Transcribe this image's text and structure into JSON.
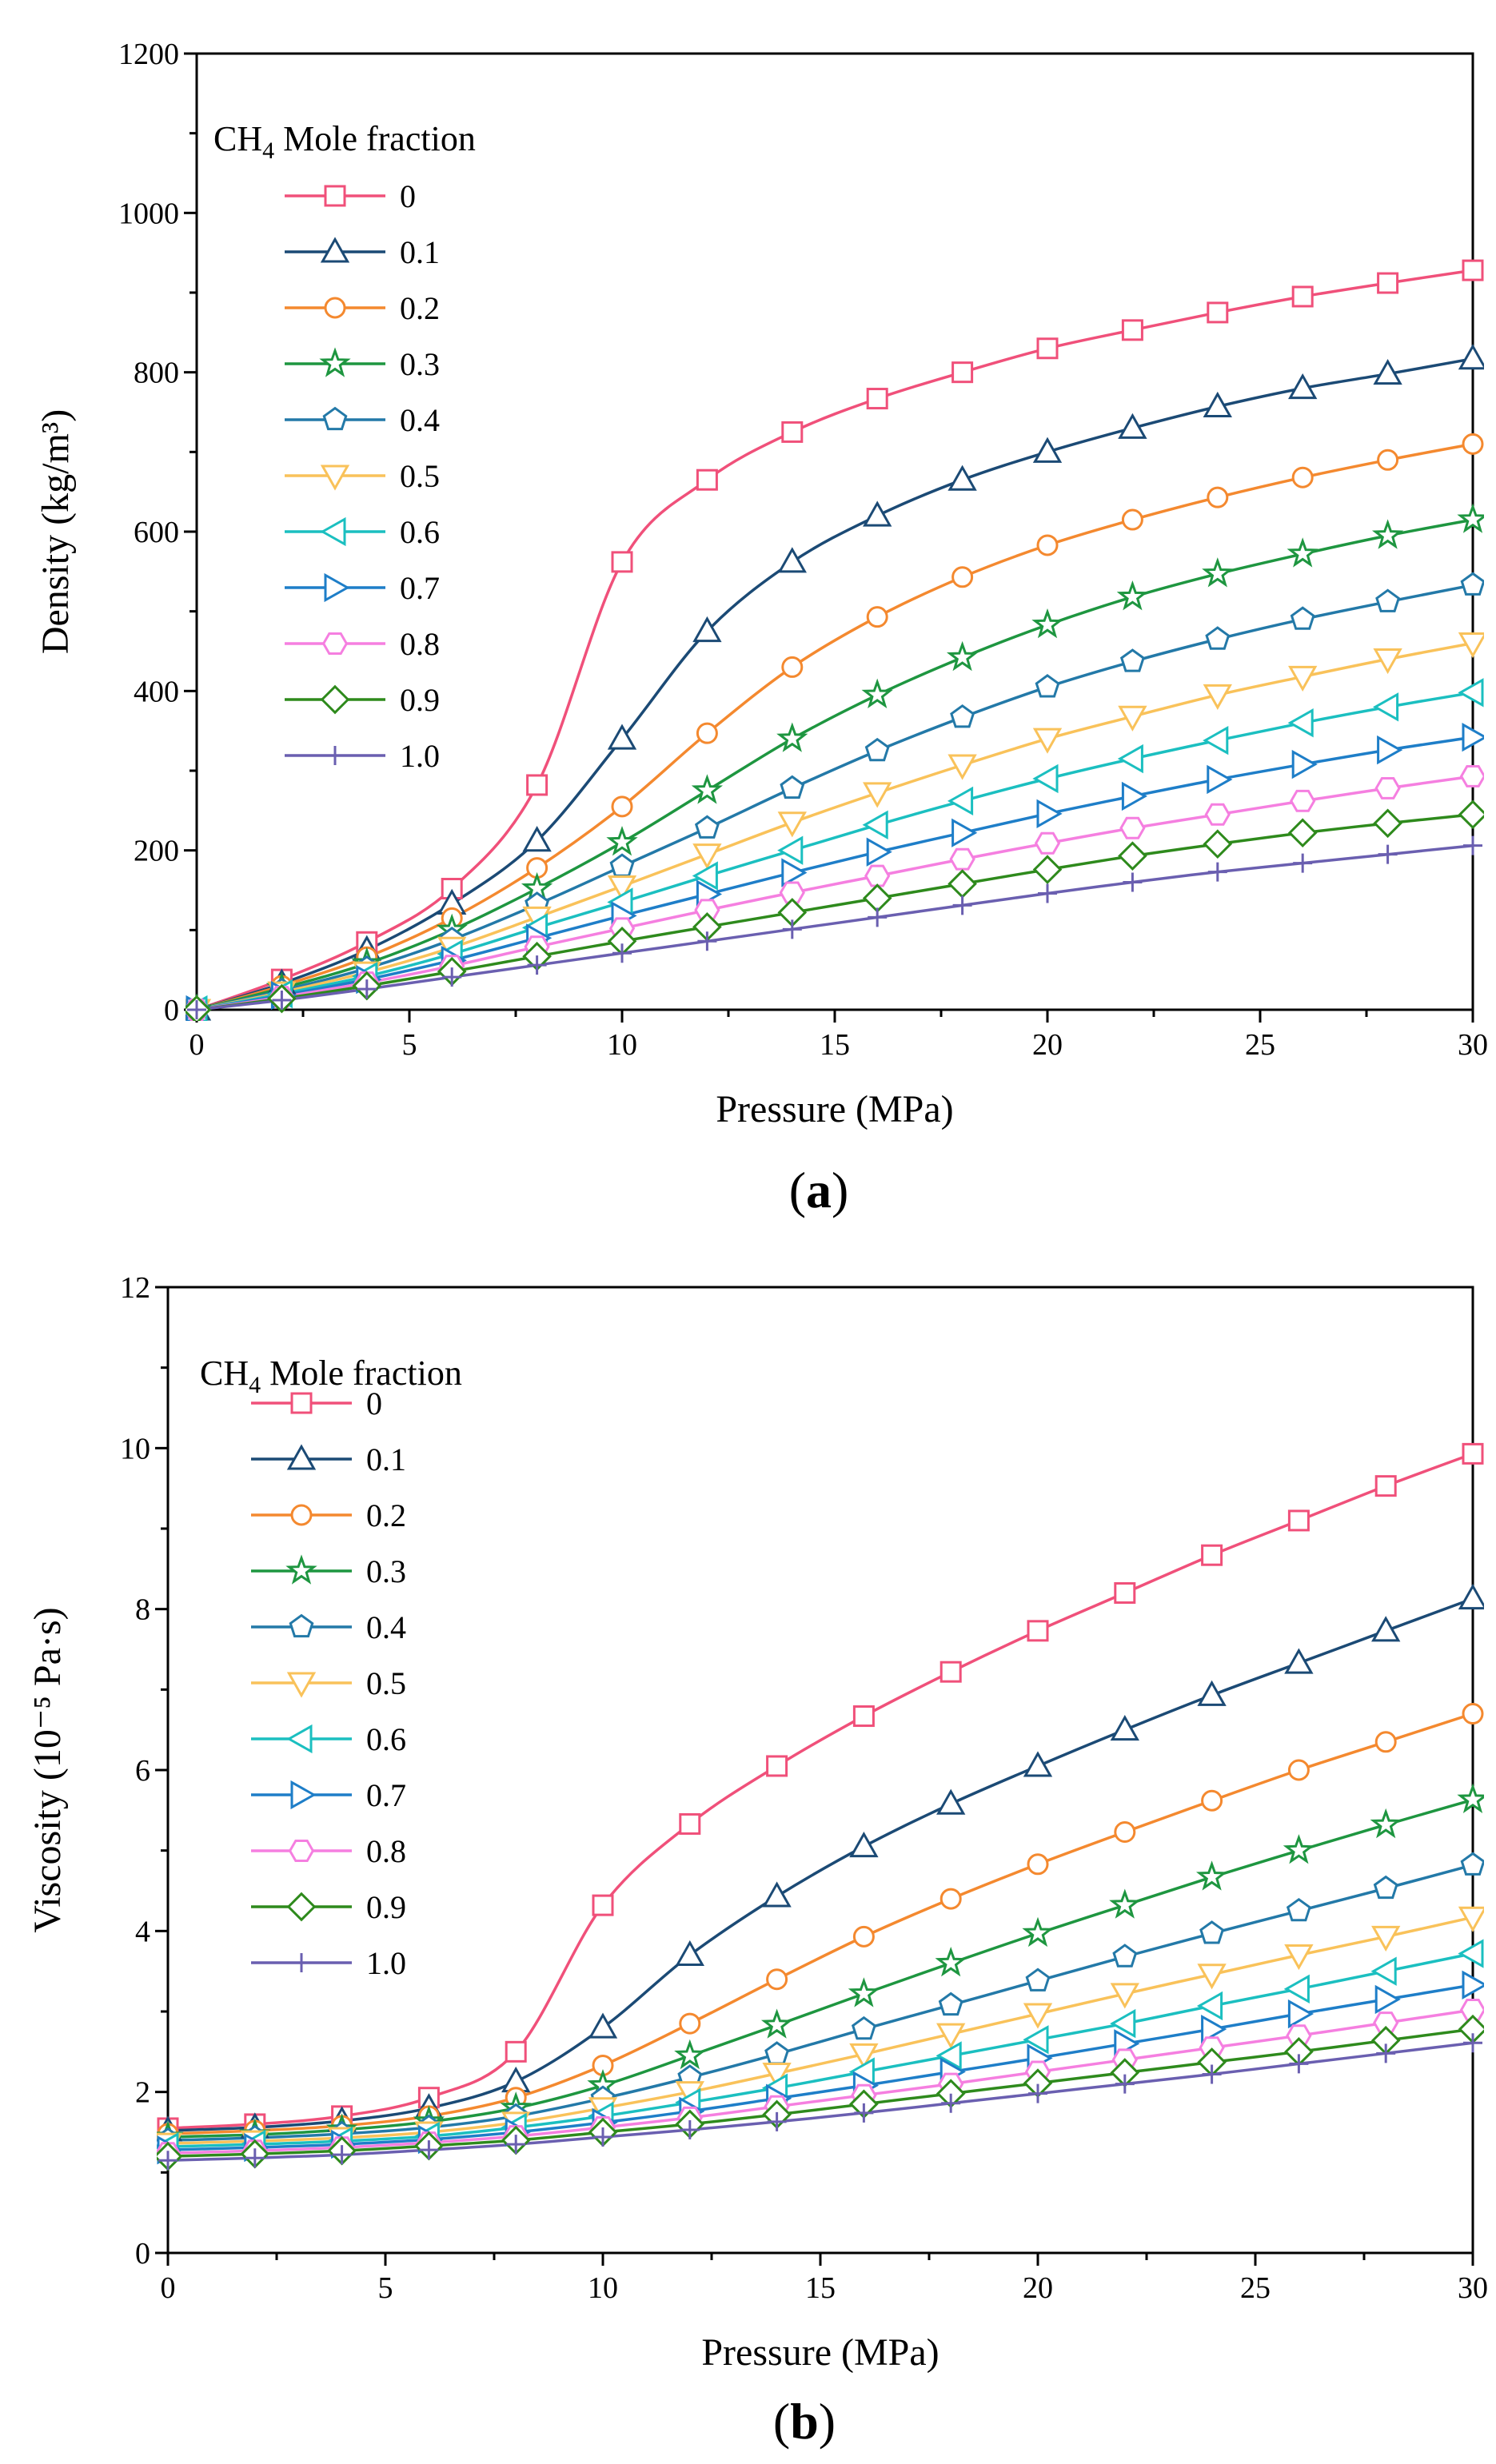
{
  "figure": {
    "legend_title": "Mole fraction",
    "legend_title_species": "CH",
    "legend_title_subscript": "4"
  },
  "chart_data": [
    {
      "type": "line",
      "caption": "(a)",
      "caption_letter": "a",
      "xlabel": "Pressure (MPa)",
      "ylabel": "Density (kg/m³)",
      "xlim": [
        0,
        30
      ],
      "ylim": [
        0,
        1200
      ],
      "x_ticks": [
        0,
        5,
        10,
        15,
        20,
        25,
        30
      ],
      "y_ticks": [
        0,
        200,
        400,
        600,
        800,
        1000,
        1200
      ],
      "x": [
        0,
        2,
        4,
        6,
        8,
        10,
        12,
        14,
        16,
        18,
        20,
        22,
        24,
        26,
        28,
        30
      ],
      "legend_position": "top-left",
      "series": [
        {
          "name": "0",
          "color": "#f0507a",
          "marker": "square",
          "values": [
            0,
            38,
            85,
            152,
            282,
            562,
            665,
            725,
            767,
            800,
            830,
            853,
            875,
            895,
            912,
            928
          ]
        },
        {
          "name": "0.1",
          "color": "#1b4a75",
          "marker": "triangle-up",
          "values": [
            0,
            33,
            75,
            133,
            212,
            340,
            475,
            562,
            620,
            665,
            700,
            730,
            757,
            780,
            798,
            817
          ]
        },
        {
          "name": "0.2",
          "color": "#f4892f",
          "marker": "circle",
          "values": [
            0,
            30,
            66,
            115,
            178,
            255,
            347,
            430,
            493,
            543,
            583,
            615,
            643,
            668,
            690,
            710
          ]
        },
        {
          "name": "0.3",
          "color": "#1e9640",
          "marker": "star",
          "values": [
            0,
            27,
            58,
            100,
            152,
            210,
            275,
            340,
            395,
            442,
            483,
            518,
            547,
            572,
            595,
            615
          ]
        },
        {
          "name": "0.4",
          "color": "#2379a8",
          "marker": "pentagon",
          "values": [
            0,
            24,
            52,
            88,
            132,
            180,
            228,
            278,
            325,
            367,
            405,
            437,
            465,
            490,
            512,
            533
          ]
        },
        {
          "name": "0.5",
          "color": "#f9c25a",
          "marker": "triangle-down",
          "values": [
            0,
            22,
            47,
            78,
            116,
            155,
            195,
            235,
            272,
            307,
            340,
            368,
            395,
            418,
            440,
            460
          ]
        },
        {
          "name": "0.6",
          "color": "#1bbfc0",
          "marker": "triangle-left",
          "values": [
            0,
            20,
            42,
            70,
            103,
            135,
            168,
            200,
            232,
            262,
            290,
            315,
            338,
            360,
            380,
            398
          ]
        },
        {
          "name": "0.7",
          "color": "#1e7ec8",
          "marker": "triangle-right",
          "values": [
            0,
            18,
            38,
            62,
            90,
            118,
            145,
            172,
            198,
            222,
            246,
            268,
            289,
            308,
            326,
            342
          ]
        },
        {
          "name": "0.8",
          "color": "#f57fe0",
          "marker": "hexagon",
          "values": [
            0,
            16,
            34,
            55,
            79,
            102,
            125,
            147,
            168,
            189,
            209,
            228,
            245,
            262,
            278,
            293
          ]
        },
        {
          "name": "0.9",
          "color": "#2e8a1c",
          "marker": "diamond",
          "values": [
            0,
            14,
            30,
            48,
            67,
            86,
            104,
            122,
            140,
            158,
            176,
            193,
            208,
            222,
            234,
            245
          ]
        },
        {
          "name": "1.0",
          "color": "#6a5fb0",
          "marker": "plus",
          "values": [
            0,
            12,
            26,
            41,
            56,
            71,
            86,
            101,
            116,
            131,
            146,
            160,
            173,
            184,
            195,
            206
          ]
        }
      ]
    },
    {
      "type": "line",
      "caption": "(b)",
      "caption_letter": "b",
      "xlabel": "Pressure (MPa)",
      "ylabel": "Viscosity (10⁻⁵ Pa·s)",
      "xlim": [
        0,
        30
      ],
      "ylim": [
        0,
        12
      ],
      "x_ticks": [
        0,
        5,
        10,
        15,
        20,
        25,
        30
      ],
      "y_ticks": [
        0,
        2,
        4,
        6,
        8,
        10,
        12
      ],
      "x": [
        0,
        2,
        4,
        6,
        8,
        10,
        12,
        14,
        16,
        18,
        20,
        22,
        24,
        26,
        28,
        30
      ],
      "legend_position": "top-left",
      "series": [
        {
          "name": "0",
          "color": "#f0507a",
          "marker": "square",
          "values": [
            1.55,
            1.6,
            1.7,
            1.93,
            2.5,
            4.32,
            5.33,
            6.05,
            6.67,
            7.22,
            7.73,
            8.2,
            8.67,
            9.1,
            9.53,
            9.93
          ]
        },
        {
          "name": "0.1",
          "color": "#1b4a75",
          "marker": "triangle-up",
          "values": [
            1.52,
            1.56,
            1.64,
            1.8,
            2.13,
            2.8,
            3.7,
            4.43,
            5.05,
            5.58,
            6.05,
            6.5,
            6.93,
            7.33,
            7.73,
            8.13
          ]
        },
        {
          "name": "0.2",
          "color": "#f4892f",
          "marker": "circle",
          "values": [
            1.48,
            1.52,
            1.58,
            1.7,
            1.93,
            2.33,
            2.85,
            3.4,
            3.93,
            4.4,
            4.83,
            5.23,
            5.62,
            6.0,
            6.35,
            6.7
          ]
        },
        {
          "name": "0.3",
          "color": "#1e9640",
          "marker": "star",
          "values": [
            1.44,
            1.47,
            1.53,
            1.63,
            1.8,
            2.08,
            2.45,
            2.83,
            3.22,
            3.6,
            3.97,
            4.32,
            4.67,
            5.0,
            5.32,
            5.63
          ]
        },
        {
          "name": "0.4",
          "color": "#2379a8",
          "marker": "pentagon",
          "values": [
            1.4,
            1.43,
            1.48,
            1.56,
            1.7,
            1.92,
            2.18,
            2.47,
            2.78,
            3.08,
            3.38,
            3.68,
            3.97,
            4.25,
            4.53,
            4.82
          ]
        },
        {
          "name": "0.5",
          "color": "#f9c25a",
          "marker": "triangle-down",
          "values": [
            1.36,
            1.39,
            1.43,
            1.5,
            1.62,
            1.8,
            2.0,
            2.23,
            2.47,
            2.72,
            2.97,
            3.22,
            3.46,
            3.7,
            3.93,
            4.17
          ]
        },
        {
          "name": "0.6",
          "color": "#1bbfc0",
          "marker": "triangle-left",
          "values": [
            1.32,
            1.35,
            1.39,
            1.45,
            1.56,
            1.7,
            1.87,
            2.05,
            2.25,
            2.45,
            2.65,
            2.85,
            3.07,
            3.28,
            3.5,
            3.72
          ]
        },
        {
          "name": "0.7",
          "color": "#1e7ec8",
          "marker": "triangle-right",
          "values": [
            1.28,
            1.31,
            1.35,
            1.41,
            1.5,
            1.62,
            1.76,
            1.92,
            2.08,
            2.25,
            2.42,
            2.6,
            2.78,
            2.97,
            3.15,
            3.33
          ]
        },
        {
          "name": "0.8",
          "color": "#f57fe0",
          "marker": "hexagon",
          "values": [
            1.24,
            1.27,
            1.31,
            1.37,
            1.45,
            1.56,
            1.68,
            1.82,
            1.96,
            2.1,
            2.25,
            2.4,
            2.55,
            2.7,
            2.86,
            3.02
          ]
        },
        {
          "name": "0.9",
          "color": "#2e8a1c",
          "marker": "diamond",
          "values": [
            1.2,
            1.23,
            1.27,
            1.33,
            1.4,
            1.5,
            1.6,
            1.72,
            1.85,
            1.98,
            2.11,
            2.24,
            2.37,
            2.5,
            2.64,
            2.78
          ]
        },
        {
          "name": "1.0",
          "color": "#6a5fb0",
          "marker": "plus",
          "values": [
            1.15,
            1.18,
            1.22,
            1.28,
            1.35,
            1.44,
            1.53,
            1.63,
            1.74,
            1.86,
            1.98,
            2.1,
            2.22,
            2.35,
            2.48,
            2.61
          ]
        }
      ]
    }
  ]
}
